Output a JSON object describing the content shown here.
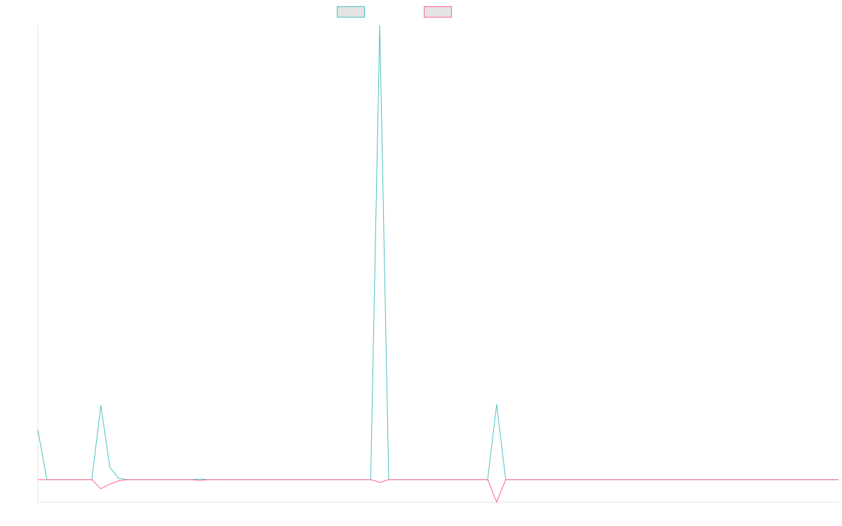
{
  "chart_data": {
    "type": "line",
    "title": "",
    "xlabel": "",
    "ylabel": "",
    "grid": false,
    "legend_placement": "top-center",
    "ylim": [
      -100,
      2020
    ],
    "series": [
      {
        "name": "",
        "color": "#4bc0c0",
        "values": [
          220,
          0,
          0,
          0,
          0,
          0,
          0,
          330,
          55,
          5,
          0,
          0,
          0,
          0,
          0,
          0,
          0,
          0,
          3,
          0,
          0,
          0,
          0,
          0,
          0,
          0,
          0,
          0,
          0,
          0,
          0,
          0,
          0,
          0,
          0,
          0,
          0,
          0,
          2020,
          0,
          0,
          0,
          0,
          0,
          0,
          0,
          0,
          0,
          0,
          0,
          0,
          335,
          0,
          0,
          0,
          0,
          0,
          0,
          0,
          0,
          0,
          0,
          0,
          0,
          0,
          0,
          0,
          0,
          0,
          0,
          0,
          0,
          0,
          0,
          0,
          0,
          0,
          0,
          0,
          0,
          0,
          0,
          0,
          0,
          0,
          0,
          0,
          0,
          0,
          0
        ]
      },
      {
        "name": "",
        "color": "#ff6384",
        "values": [
          0,
          0,
          0,
          0,
          0,
          0,
          0,
          -40,
          -20,
          -5,
          0,
          0,
          0,
          0,
          0,
          0,
          0,
          0,
          -3,
          0,
          0,
          0,
          0,
          0,
          0,
          0,
          0,
          0,
          0,
          0,
          0,
          0,
          0,
          0,
          0,
          0,
          0,
          0,
          -12,
          0,
          0,
          0,
          0,
          0,
          0,
          0,
          0,
          0,
          0,
          0,
          0,
          -100,
          0,
          0,
          0,
          0,
          0,
          0,
          0,
          0,
          0,
          0,
          0,
          0,
          0,
          0,
          0,
          0,
          0,
          0,
          0,
          0,
          0,
          0,
          0,
          0,
          0,
          0,
          0,
          0,
          0,
          0,
          0,
          0,
          0,
          0,
          0,
          0,
          0,
          0
        ]
      }
    ]
  }
}
